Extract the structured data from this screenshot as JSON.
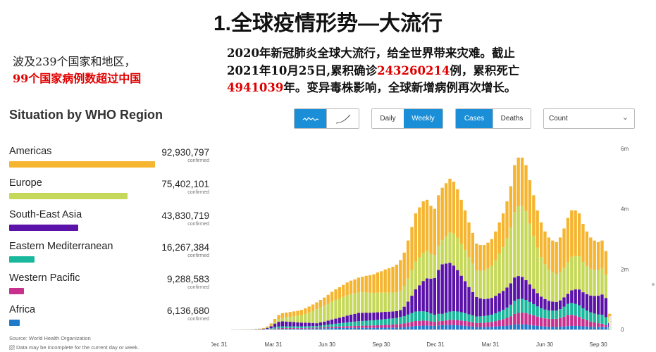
{
  "title": "1.全球疫情形势—大流行",
  "left_note": {
    "line1": "波及239个国家和地区，",
    "line2": "99个国家病例数超过中国"
  },
  "desc": {
    "p1": "2020年新冠肺炎全球大流行，给全世界带来灾难。截止",
    "p2": "2021年10月25日,累积确诊",
    "confirmed": "243260214",
    "p3": "例，累积死亡",
    "deaths": "4941039",
    "p4": "年。变异毒株影响，全球新增病例再次增长。"
  },
  "panel": {
    "title": "Situation by WHO Region",
    "confirmed_label": "confirmed",
    "source": "Source: World Health Organization",
    "note": "Data may be incomplete for the current day or week.",
    "regions": [
      {
        "name": "Americas",
        "value": "92,930,797",
        "count": 92930797,
        "color": "#f5b531"
      },
      {
        "name": "Europe",
        "value": "75,402,101",
        "count": 75402101,
        "color": "#c6d85a"
      },
      {
        "name": "South-East Asia",
        "value": "43,830,719",
        "count": 43830719,
        "color": "#5a12a8"
      },
      {
        "name": "Eastern Mediterranean",
        "value": "16,267,384",
        "count": 16267384,
        "color": "#19b89c"
      },
      {
        "name": "Western Pacific",
        "value": "9,288,583",
        "count": 9288583,
        "color": "#c8308e"
      },
      {
        "name": "Africa",
        "value": "6,136,680",
        "count": 6136680,
        "color": "#1f7ac9"
      }
    ]
  },
  "controls": {
    "chart_style": [
      {
        "icon": "sparkline-icon",
        "active": true
      },
      {
        "icon": "trend-line-icon",
        "active": false
      }
    ],
    "period": [
      {
        "label": "Daily",
        "active": false
      },
      {
        "label": "Weekly",
        "active": true
      }
    ],
    "metric": [
      {
        "label": "Cases",
        "active": true
      },
      {
        "label": "Deaths",
        "active": false
      }
    ],
    "scale": {
      "selected": "Count"
    }
  },
  "chart_data": {
    "type": "bar",
    "stacked": true,
    "x_tick_labels": [
      "Dec 31",
      "Mar 31",
      "Jun 30",
      "Sep 30",
      "Dec 31",
      "Mar 31",
      "Jun 30",
      "Sep 30"
    ],
    "y_tick_labels": [
      "0",
      "2m",
      "4m",
      "6m"
    ],
    "ylim": [
      0,
      6000000
    ],
    "y_axis_side": "right",
    "series": [
      {
        "region": "Africa",
        "color": "#1f7ac9"
      },
      {
        "region": "Western Pacific",
        "color": "#c8308e"
      },
      {
        "region": "Eastern Mediterranean",
        "color": "#19b89c"
      },
      {
        "region": "South-East Asia",
        "color": "#5a12a8"
      },
      {
        "region": "Europe",
        "color": "#c6d85a"
      },
      {
        "region": "Americas",
        "color": "#f5b531"
      }
    ],
    "weekly_totals": [
      0,
      0,
      1000,
      2000,
      5000,
      10000,
      20000,
      30000,
      50000,
      100000,
      200000,
      350000,
      480000,
      540000,
      560000,
      580000,
      600000,
      620000,
      650000,
      700000,
      760000,
      830000,
      900000,
      980000,
      1060000,
      1150000,
      1250000,
      1330000,
      1400000,
      1480000,
      1560000,
      1620000,
      1660000,
      1720000,
      1750000,
      1780000,
      1800000,
      1830000,
      1890000,
      1930000,
      1990000,
      2030000,
      2080000,
      2150000,
      2300000,
      2550000,
      2950000,
      3400000,
      3850000,
      4050000,
      4250000,
      4300000,
      4100000,
      4000000,
      4450000,
      4700000,
      4850000,
      5000000,
      4900000,
      4650000,
      4300000,
      3950000,
      3550000,
      3200000,
      2850000,
      2800000,
      2800000,
      2880000,
      3000000,
      3250000,
      3550000,
      3850000,
      4250000,
      4750000,
      5450000,
      5700000,
      5700000,
      5450000,
      4950000,
      4450000,
      3950000,
      3550000,
      3250000,
      3050000,
      2950000,
      2900000,
      3050000,
      3350000,
      3700000,
      3950000,
      3950000,
      3850000,
      3500000,
      3250000,
      3050000,
      2950000,
      2900000,
      2950000,
      2600000,
      520000
    ],
    "weekly_shares": [
      {
        "Africa": 0.05,
        "Western Pacific": 0.08,
        "Eastern Mediterranean": 0.12,
        "South-East Asia": 0.15,
        "Europe": 0.3,
        "Americas": 0.3
      },
      {
        "Africa": 0.04,
        "Western Pacific": 0.05,
        "Eastern Mediterranean": 0.12,
        "South-East Asia": 0.35,
        "Europe": 0.14,
        "Americas": 0.3
      },
      {
        "Africa": 0.04,
        "Western Pacific": 0.03,
        "Eastern Mediterranean": 0.06,
        "South-East Asia": 0.1,
        "Europe": 0.52,
        "Americas": 0.25
      },
      {
        "Africa": 0.03,
        "Western Pacific": 0.04,
        "Eastern Mediterranean": 0.09,
        "South-East Asia": 0.16,
        "Europe": 0.4,
        "Americas": 0.28
      },
      {
        "Africa": 0.03,
        "Western Pacific": 0.05,
        "Eastern Mediterranean": 0.1,
        "South-East Asia": 0.1,
        "Europe": 0.28,
        "Americas": 0.44
      },
      {
        "Africa": 0.03,
        "Western Pacific": 0.03,
        "Eastern Mediterranean": 0.05,
        "South-East Asia": 0.35,
        "Europe": 0.17,
        "Americas": 0.37
      },
      {
        "Africa": 0.03,
        "Western Pacific": 0.05,
        "Eastern Mediterranean": 0.08,
        "South-East Asia": 0.2,
        "Europe": 0.34,
        "Americas": 0.3
      },
      {
        "Africa": 0.03,
        "Western Pacific": 0.07,
        "Eastern Mediterranean": 0.08,
        "South-East Asia": 0.12,
        "Europe": 0.42,
        "Americas": 0.28
      },
      {
        "Africa": 0.03,
        "Western Pacific": 0.1,
        "Eastern Mediterranean": 0.1,
        "South-East Asia": 0.09,
        "Europe": 0.28,
        "Americas": 0.4
      },
      {
        "Africa": 0.03,
        "Western Pacific": 0.02,
        "Eastern Mediterranean": 0.1,
        "South-East Asia": 0.26,
        "Europe": 0.3,
        "Americas": 0.29
      }
    ]
  }
}
